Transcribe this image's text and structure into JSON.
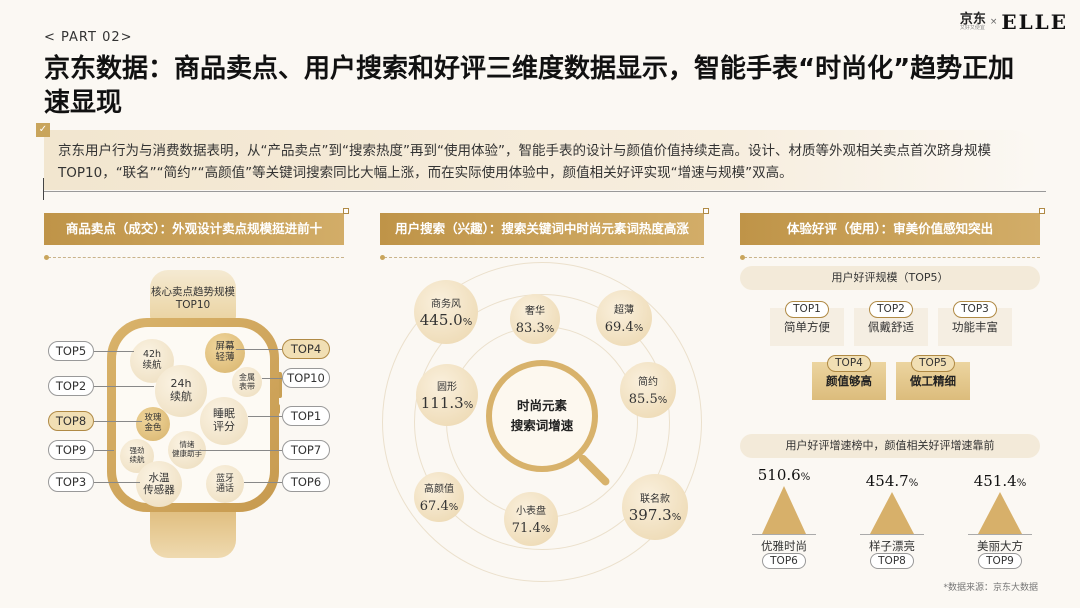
{
  "header": {
    "part": "< PART 02>",
    "logo_jd": "京东",
    "logo_jd_sub": "又好又便宜",
    "logo_x": "×",
    "logo_elle": "ELLE",
    "title": "京东数据：商品卖点、用户搜索和好评三维度数据显示，智能手表“时尚化”趋势正加速显现"
  },
  "intro": {
    "check": "✓",
    "text": "京东用户行为与消费数据表明，从“产品卖点”到“搜索热度”再到“使用体验”，智能手表的设计与颜值价值持续走高。设计、材质等外观相关卖点首次跻身规模TOP10，“联名”“简约”“高颜值”等关键词搜索同比大幅上涨，而在实际使用体验中，颜值相关好评实现“增速与规模”双高。"
  },
  "sections": {
    "s1": "商品卖点（成交）：外观设计卖点规模挺进前十",
    "s2": "用户搜索（兴趣）：搜索关键词中时尚元素词热度高涨",
    "s3": "体验好评（使用）：审美价值感知突出"
  },
  "watch": {
    "label_line1": "核心卖点趋势规模",
    "label_line2": "TOP10",
    "bubbles": {
      "b42h": "42h\n续航",
      "screen": "屏幕\n轻薄",
      "metal": "金属\n表带",
      "b24h": "24h\n续航",
      "sleep": "睡眠\n评分",
      "rose": "玫瑰\n金色",
      "strong": "强劲\n续航",
      "emotion": "情绪\n健康助手",
      "water": "水温\n传感器",
      "bt": "蓝牙\n通话"
    },
    "ranks": {
      "top5": "TOP5",
      "top2": "TOP2",
      "top8": "TOP8",
      "top9": "TOP9",
      "top3": "TOP3",
      "top4": "TOP4",
      "top10": "TOP10",
      "top1": "TOP1",
      "top7": "TOP7",
      "top6": "TOP6"
    }
  },
  "search": {
    "center_line1": "时尚元素",
    "center_line2": "搜索词增速",
    "items": [
      {
        "label": "商务风",
        "value": "445.0",
        "pct": "%"
      },
      {
        "label": "奢华",
        "value": "83.3",
        "pct": "%"
      },
      {
        "label": "超薄",
        "value": "69.4",
        "pct": "%"
      },
      {
        "label": "圆形",
        "value": "111.3",
        "pct": "%"
      },
      {
        "label": "简约",
        "value": "85.5",
        "pct": "%"
      },
      {
        "label": "高颜值",
        "value": "67.4",
        "pct": "%"
      },
      {
        "label": "小表盘",
        "value": "71.4",
        "pct": "%"
      },
      {
        "label": "联名款",
        "value": "397.3",
        "pct": "%"
      }
    ]
  },
  "reviews": {
    "scale_title": "用户好评规模（TOP5）",
    "tops": [
      {
        "rank": "TOP1",
        "name": "简单方便"
      },
      {
        "rank": "TOP2",
        "name": "佩戴舒适"
      },
      {
        "rank": "TOP3",
        "name": "功能丰富"
      },
      {
        "rank": "TOP4",
        "name": "颜值够高"
      },
      {
        "rank": "TOP5",
        "name": "做工精细"
      }
    ],
    "growth_title": "用户好评增速榜中，颜值相关好评增速靠前",
    "growth": [
      {
        "value": "510.6",
        "pct": "%",
        "name": "优雅时尚",
        "rank": "TOP6"
      },
      {
        "value": "454.7",
        "pct": "%",
        "name": "样子漂亮",
        "rank": "TOP8"
      },
      {
        "value": "451.4",
        "pct": "%",
        "name": "美丽大方",
        "rank": "TOP9"
      }
    ]
  },
  "source": "*数据来源：京东大数据",
  "colors": {
    "gold": "#c9a055",
    "background": "#fbf8f3",
    "light_gold": "#f1dfb4"
  }
}
